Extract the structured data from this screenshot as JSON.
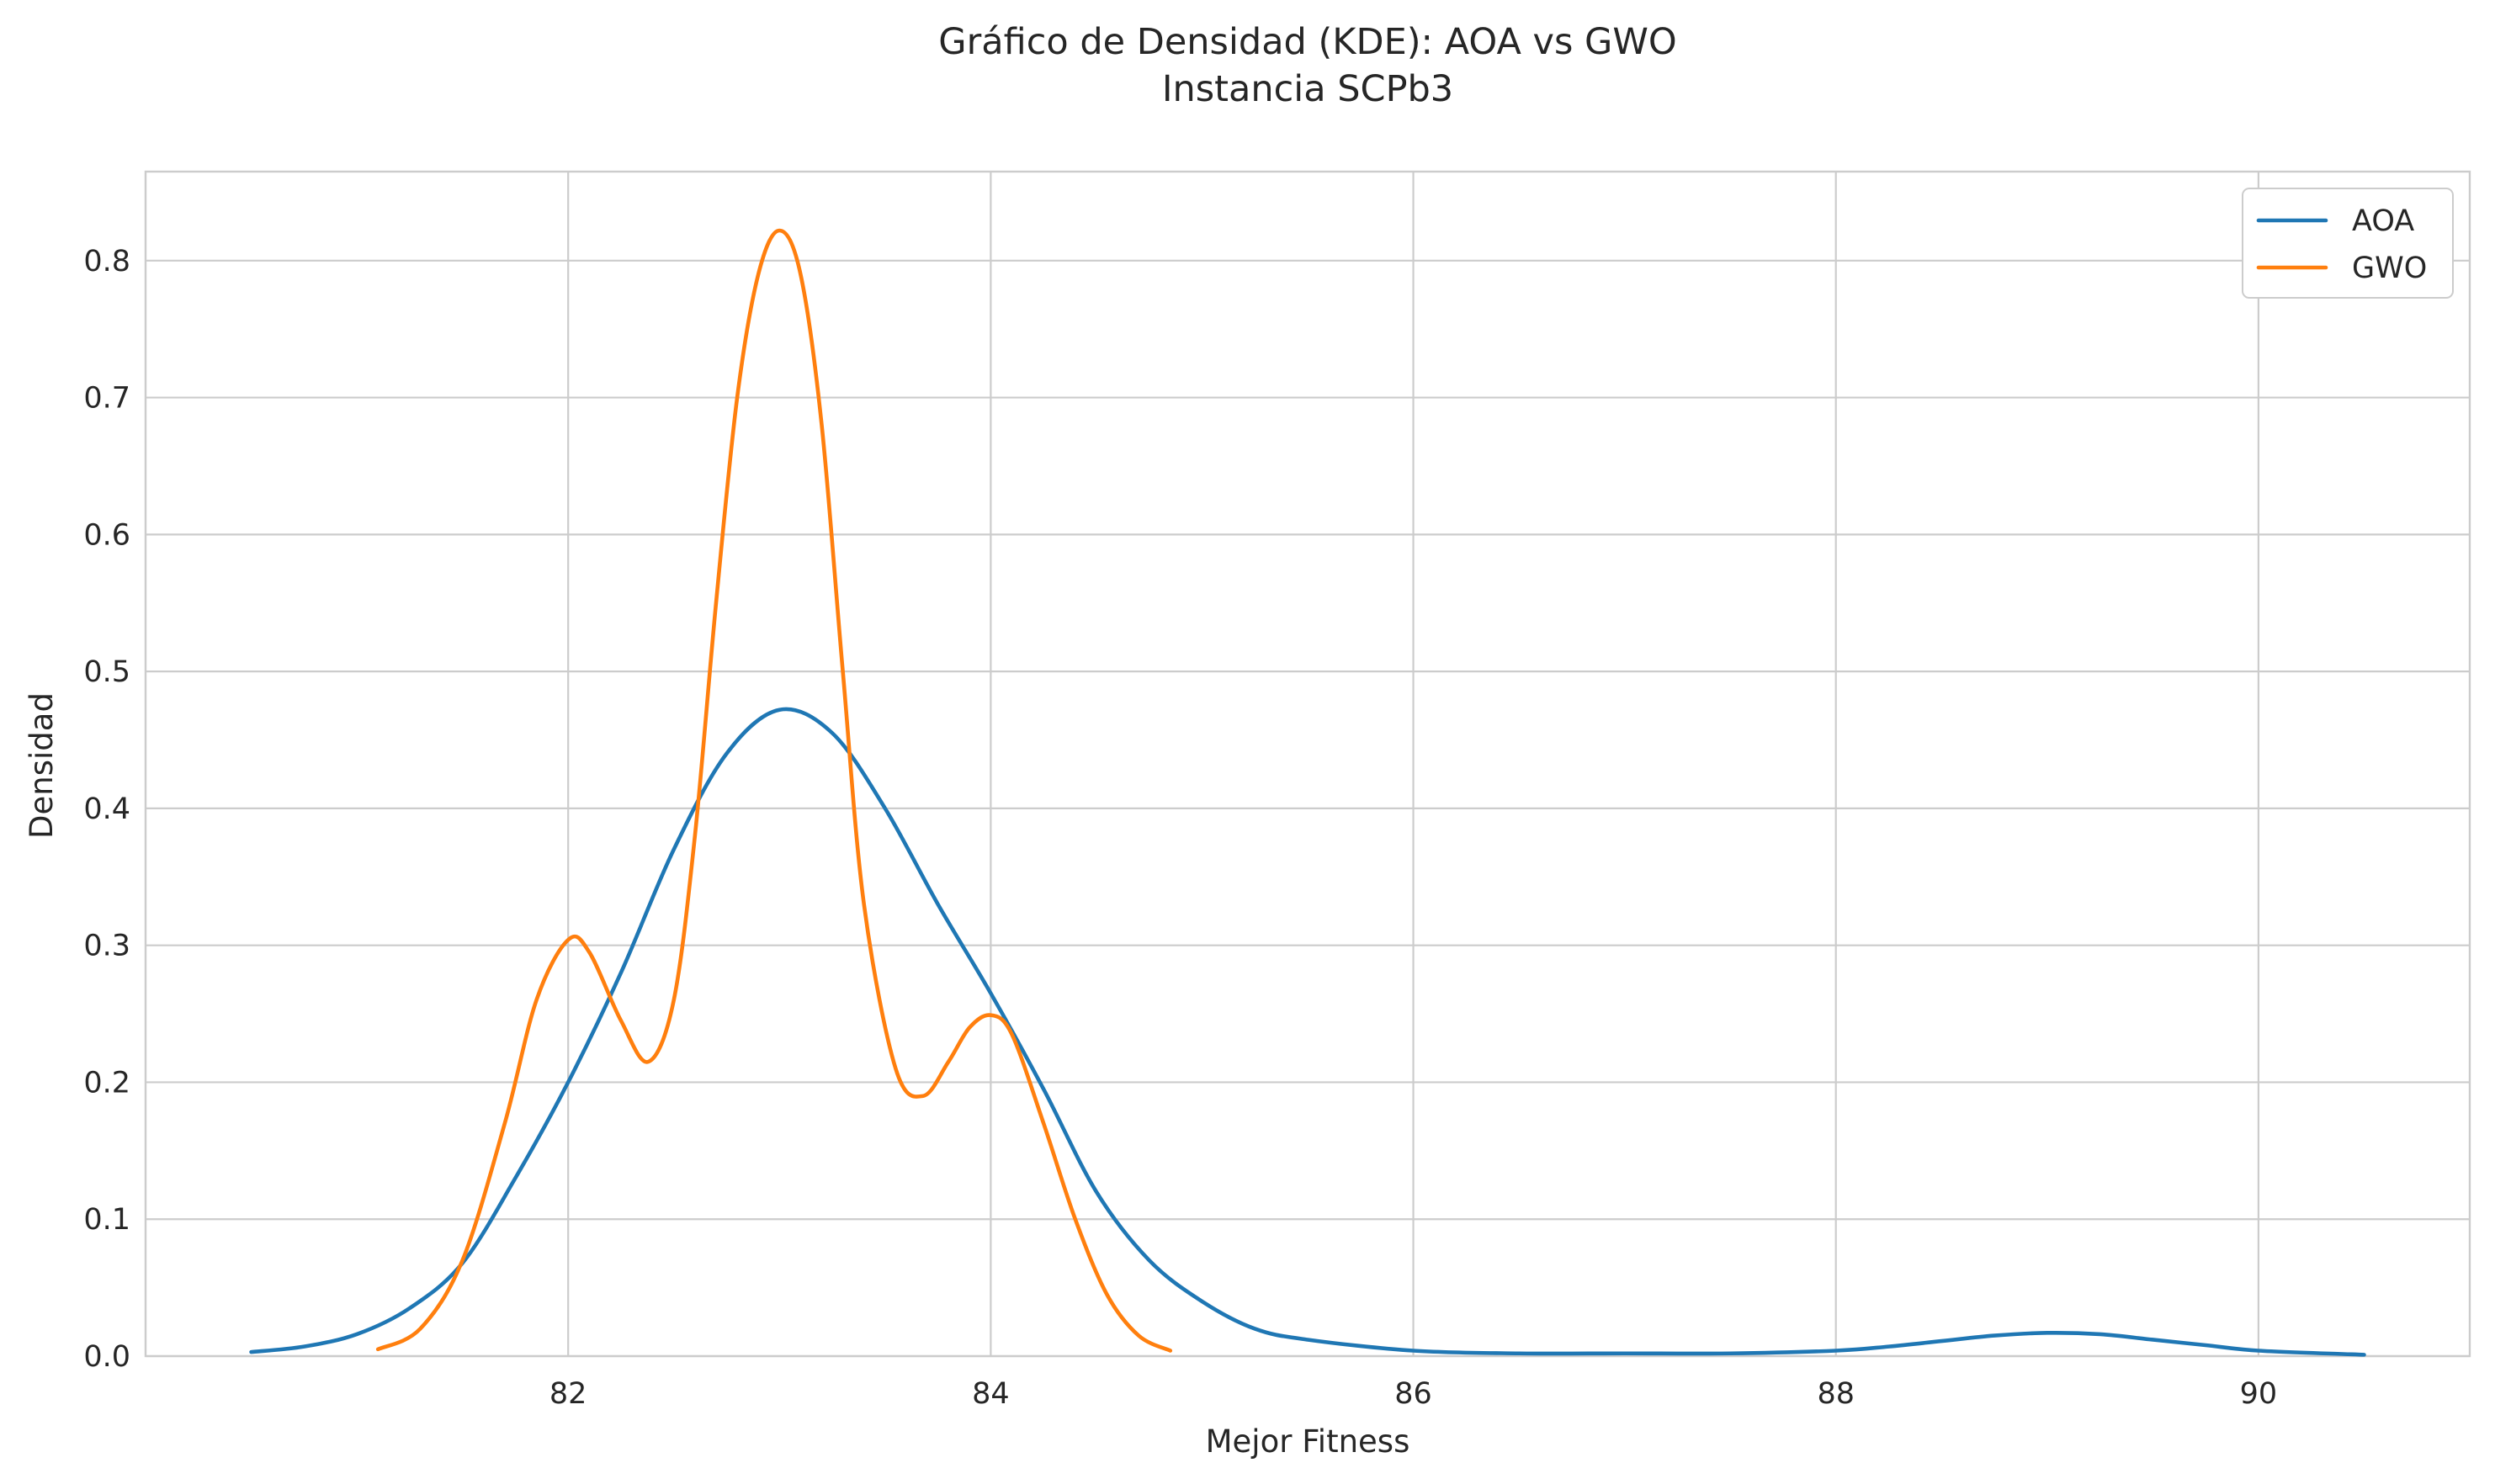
{
  "chart_data": {
    "type": "line",
    "title": "Gráfico de Densidad (KDE): AOA vs GWO",
    "subtitle": "Instancia SCPb3",
    "xlabel": "Mejor Fitness",
    "ylabel": "Densidad",
    "xlim": [
      80.0,
      91.0
    ],
    "ylim": [
      0.0,
      0.865
    ],
    "x_ticks": [
      82,
      84,
      86,
      88,
      90
    ],
    "y_ticks": [
      0.0,
      0.1,
      0.2,
      0.3,
      0.4,
      0.5,
      0.6,
      0.7,
      0.8
    ],
    "x_tick_labels": [
      "82",
      "84",
      "86",
      "88",
      "90"
    ],
    "y_tick_labels": [
      "0.0",
      "0.1",
      "0.2",
      "0.3",
      "0.4",
      "0.5",
      "0.6",
      "0.7",
      "0.8"
    ],
    "grid": true,
    "legend_position": "top-right",
    "series": [
      {
        "name": "AOA",
        "color": "#1f77b4",
        "points": [
          [
            80.5,
            0.003
          ],
          [
            80.75,
            0.007
          ],
          [
            81.0,
            0.016
          ],
          [
            81.25,
            0.035
          ],
          [
            81.5,
            0.068
          ],
          [
            81.75,
            0.13
          ],
          [
            82.0,
            0.2
          ],
          [
            82.25,
            0.28
          ],
          [
            82.5,
            0.37
          ],
          [
            82.75,
            0.44
          ],
          [
            83.0,
            0.472
          ],
          [
            83.25,
            0.455
          ],
          [
            83.5,
            0.4
          ],
          [
            83.75,
            0.33
          ],
          [
            84.0,
            0.265
          ],
          [
            84.25,
            0.195
          ],
          [
            84.5,
            0.12
          ],
          [
            84.75,
            0.07
          ],
          [
            85.0,
            0.04
          ],
          [
            85.25,
            0.02
          ],
          [
            85.5,
            0.012
          ],
          [
            86.0,
            0.004
          ],
          [
            86.5,
            0.002
          ],
          [
            87.0,
            0.002
          ],
          [
            87.5,
            0.002
          ],
          [
            88.0,
            0.004
          ],
          [
            88.25,
            0.007
          ],
          [
            88.5,
            0.011
          ],
          [
            88.75,
            0.015
          ],
          [
            89.0,
            0.017
          ],
          [
            89.25,
            0.016
          ],
          [
            89.5,
            0.012
          ],
          [
            89.75,
            0.008
          ],
          [
            90.0,
            0.004
          ],
          [
            90.5,
            0.001
          ]
        ]
      },
      {
        "name": "GWO",
        "color": "#ff7f0e",
        "points": [
          [
            81.1,
            0.005
          ],
          [
            81.3,
            0.02
          ],
          [
            81.5,
            0.07
          ],
          [
            81.7,
            0.17
          ],
          [
            81.85,
            0.26
          ],
          [
            82.0,
            0.304
          ],
          [
            82.1,
            0.295
          ],
          [
            82.25,
            0.245
          ],
          [
            82.38,
            0.215
          ],
          [
            82.5,
            0.26
          ],
          [
            82.6,
            0.38
          ],
          [
            82.7,
            0.55
          ],
          [
            82.8,
            0.7
          ],
          [
            82.9,
            0.79
          ],
          [
            83.0,
            0.822
          ],
          [
            83.1,
            0.79
          ],
          [
            83.2,
            0.68
          ],
          [
            83.3,
            0.5
          ],
          [
            83.4,
            0.33
          ],
          [
            83.55,
            0.21
          ],
          [
            83.68,
            0.19
          ],
          [
            83.8,
            0.215
          ],
          [
            83.9,
            0.24
          ],
          [
            84.0,
            0.249
          ],
          [
            84.1,
            0.235
          ],
          [
            84.25,
            0.17
          ],
          [
            84.4,
            0.1
          ],
          [
            84.55,
            0.045
          ],
          [
            84.7,
            0.015
          ],
          [
            84.85,
            0.004
          ]
        ]
      }
    ]
  }
}
